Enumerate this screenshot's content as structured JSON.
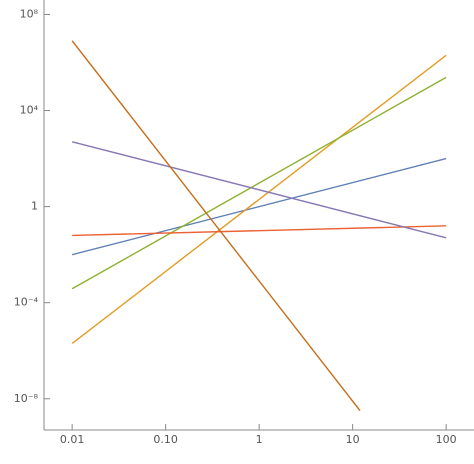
{
  "chart_data": {
    "type": "line",
    "log_x": true,
    "log_y": true,
    "xlim": [
      0.005,
      180
    ],
    "ylim": [
      5e-10,
      400000000.0
    ],
    "xticks": [
      0.01,
      {
        "value": 0.1,
        "label": "0.10"
      },
      1,
      10,
      100
    ],
    "yticks": [
      {
        "value": 1e-08,
        "label": "10⁻⁸"
      },
      {
        "value": 0.0001,
        "label": "10⁻⁴"
      },
      1,
      {
        "value": 10000,
        "label": "10⁴"
      },
      {
        "value": 100000000,
        "label": "10⁸"
      }
    ],
    "series": [
      {
        "color": "#5e81b5",
        "x": [
          0.01,
          100
        ],
        "values": [
          0.01,
          100
        ]
      },
      {
        "color": "#e19c24",
        "x": [
          0.01,
          100
        ],
        "values": [
          2e-06,
          2000000
        ]
      },
      {
        "color": "#8fb032",
        "x": [
          0.01,
          100
        ],
        "values": [
          0.00038,
          240000
        ]
      },
      {
        "color": "#eb6235",
        "x": [
          0.01,
          100
        ],
        "values": [
          0.063,
          0.158
        ]
      },
      {
        "color": "#8778b3",
        "x": [
          0.01,
          100
        ],
        "values": [
          500,
          0.05
        ]
      },
      {
        "color": "#c56e1a",
        "x": [
          0.01,
          12
        ],
        "values": [
          8000000,
          3.2e-09
        ]
      }
    ]
  }
}
